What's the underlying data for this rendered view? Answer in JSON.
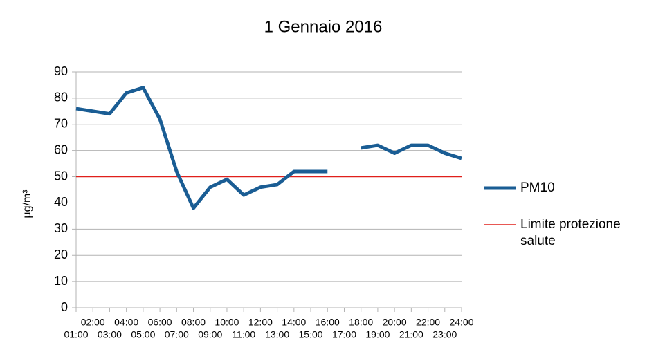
{
  "chart_data": {
    "type": "line",
    "title": "1 Gennaio 2016",
    "y_label": "µg/m³",
    "categories": [
      "01:00",
      "02:00",
      "03:00",
      "04:00",
      "05:00",
      "06:00",
      "07:00",
      "08:00",
      "09:00",
      "10:00",
      "11:00",
      "12:00",
      "13:00",
      "14:00",
      "15:00",
      "16:00",
      "17:00",
      "18:00",
      "19:00",
      "20:00",
      "21:00",
      "22:00",
      "23:00",
      "24:00"
    ],
    "series": [
      {
        "name": "PM10",
        "color": "#1a5d94",
        "values": [
          76,
          75,
          74,
          82,
          84,
          72,
          52,
          38,
          46,
          49,
          43,
          46,
          47,
          52,
          52,
          52,
          null,
          61,
          62,
          59,
          62,
          62,
          59,
          57
        ]
      },
      {
        "name": "Limite protezione salute",
        "color": "#e0201b",
        "values": [
          50,
          50,
          50,
          50,
          50,
          50,
          50,
          50,
          50,
          50,
          50,
          50,
          50,
          50,
          50,
          50,
          50,
          50,
          50,
          50,
          50,
          50,
          50,
          50
        ]
      }
    ],
    "ylim": [
      0,
      90
    ],
    "yticks": [
      0,
      10,
      20,
      30,
      40,
      50,
      60,
      70,
      80,
      90
    ],
    "grid": true,
    "legend": "right"
  }
}
